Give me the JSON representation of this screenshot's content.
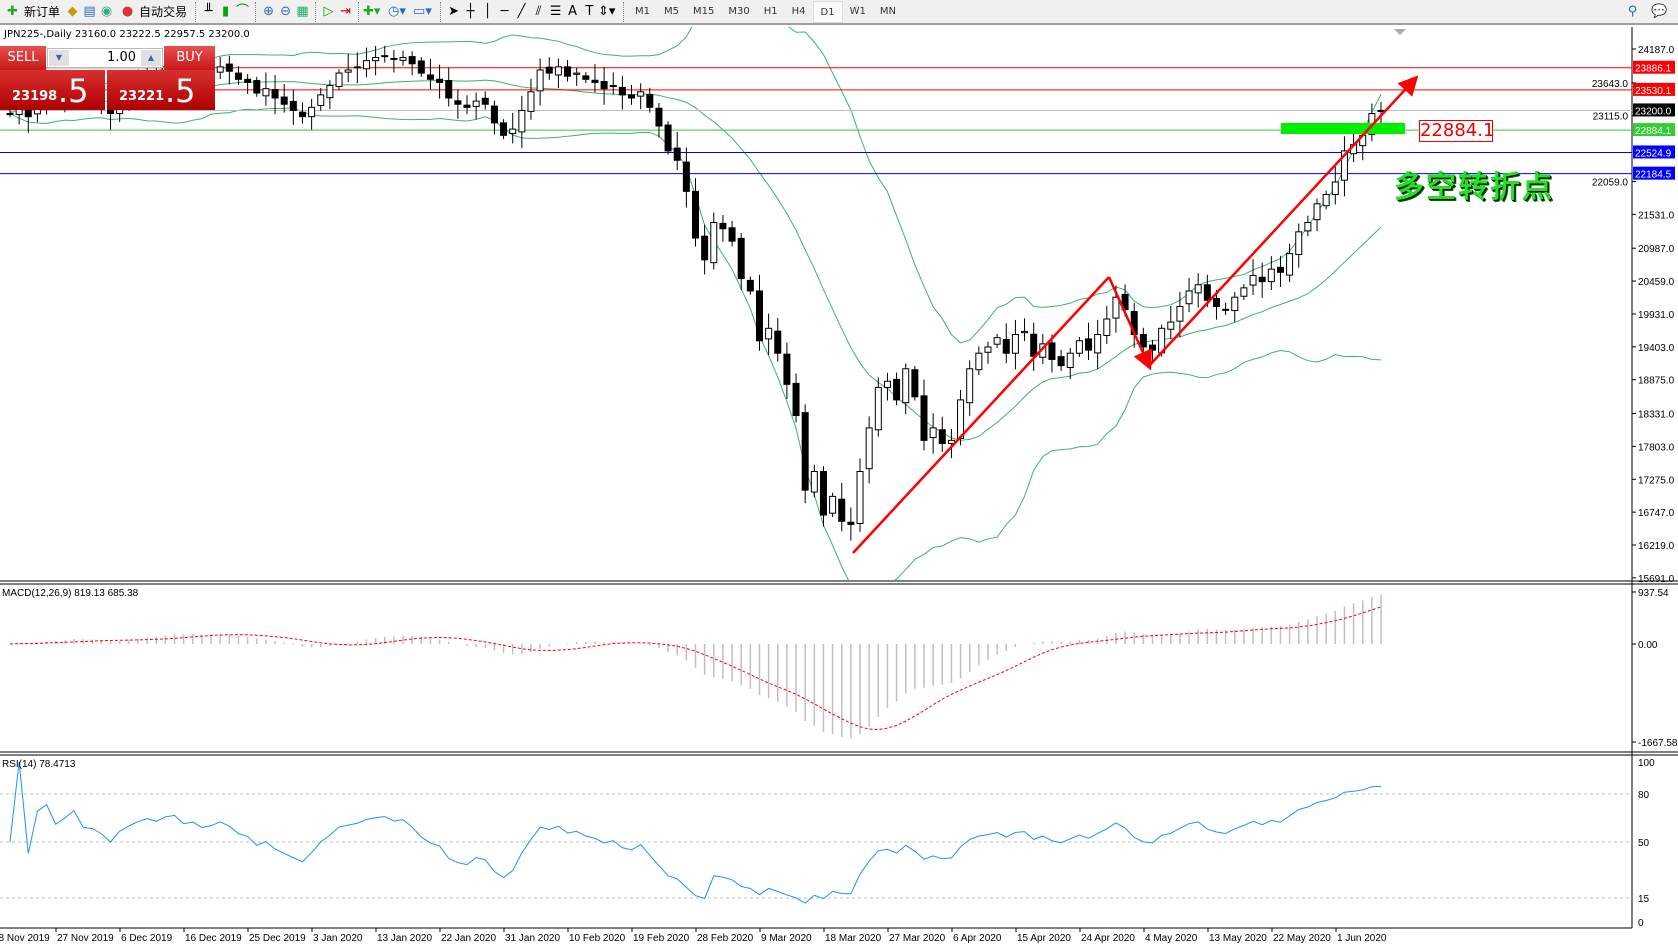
{
  "toolbar": {
    "new_order": "新订单",
    "auto_trading": "自动交易",
    "icons": [
      "new-order-icon",
      "market-watch-icon",
      "navigator-icon",
      "signal-icon",
      "auto-trading-icon",
      "bar-chart-icon",
      "candle-chart-icon",
      "line-chart-icon",
      "zoom-in-icon",
      "zoom-out-icon",
      "tile-icon",
      "autoscroll-icon",
      "chart-shift-icon",
      "indicators-icon",
      "periods-icon",
      "templates-icon",
      "cursor-icon",
      "crosshair-icon",
      "vertical-line-icon",
      "horizontal-line-icon",
      "trendline-icon",
      "equidistant-channel-icon",
      "fibonacci-icon",
      "text-icon",
      "text-label-icon",
      "arrows-icon"
    ],
    "timeframes": [
      "M1",
      "M5",
      "M15",
      "M30",
      "H1",
      "H4",
      "D1",
      "W1",
      "MN"
    ],
    "active_timeframe": "D1"
  },
  "chart": {
    "title": "JPN225-,Daily  23160.0 23222.5 22957.5 23200.0",
    "sell_label": "SELL",
    "buy_label": "BUY",
    "lot": "1.00",
    "bid_main": "23198",
    "bid_big": ".5",
    "ask_main": "23221",
    "ask_big": ".5",
    "annotation": "多空转折点",
    "box_label": "22884.1"
  },
  "macd": {
    "label": "MACD(12,26,9) 819.13 685.38",
    "axis": [
      "937.54",
      "0.00",
      "-1667.58"
    ],
    "range": [
      -1667.58,
      937.54
    ]
  },
  "rsi": {
    "label": "RSI(14) 78.4713",
    "axis": [
      "100",
      "80",
      "50",
      "15",
      "0"
    ],
    "levels": [
      80,
      50,
      15
    ]
  },
  "colors": {
    "up_line": "#000000",
    "band": "#3cb371",
    "rsi": "#1e90ff",
    "macd_signal": "#ff0000",
    "macd_hist": "#c0c0c0",
    "red_line": "#ff0000",
    "blue_line": "#0000ff",
    "green_line": "#32cd32"
  },
  "chart_data": {
    "type": "candlestick",
    "symbol": "JPN225-",
    "period": "Daily",
    "last_ohlc": [
      23160.0,
      23222.5,
      22957.5,
      23200.0
    ],
    "ylim": [
      15691.0,
      24187.0
    ],
    "price_ticks": [
      "24187.0",
      "23643.0",
      "23115.0",
      "22059.0",
      "21531.0",
      "20987.0",
      "20459.0",
      "19931.0",
      "19403.0",
      "18875.0",
      "18331.0",
      "17803.0",
      "17275.0",
      "16747.0",
      "16219.0",
      "15691.0"
    ],
    "date_labels": [
      "18 Nov 2019",
      "27 Nov 2019",
      "6 Dec 2019",
      "16 Dec 2019",
      "25 Dec 2019",
      "3 Jan 2020",
      "13 Jan 2020",
      "22 Jan 2020",
      "31 Jan 2020",
      "10 Feb 2020",
      "19 Feb 2020",
      "28 Feb 2020",
      "9 Mar 2020",
      "18 Mar 2020",
      "27 Mar 2020",
      "6 Apr 2020",
      "15 Apr 2020",
      "24 Apr 2020",
      "4 May 2020",
      "13 May 2020",
      "22 May 2020",
      "1 Jun 2020"
    ],
    "closes": [
      23150,
      23300,
      23100,
      23400,
      23500,
      23350,
      23450,
      23600,
      23400,
      23380,
      23300,
      23150,
      23400,
      23550,
      23700,
      23800,
      23750,
      23900,
      23950,
      23800,
      23850,
      23750,
      23800,
      23900,
      23830,
      23700,
      23650,
      23480,
      23550,
      23400,
      23300,
      23200,
      23100,
      23250,
      23450,
      23600,
      23800,
      23850,
      23900,
      24000,
      24050,
      24080,
      24020,
      24050,
      23950,
      23800,
      23700,
      23650,
      23400,
      23300,
      23250,
      23350,
      23300,
      23000,
      22800,
      22900,
      23200,
      23500,
      23850,
      23800,
      23900,
      23750,
      23800,
      23700,
      23650,
      23550,
      23600,
      23450,
      23400,
      23500,
      23250,
      22950,
      22550,
      22400,
      21900,
      21150,
      20800,
      21400,
      21300,
      21100,
      20500,
      20300,
      19500,
      19700,
      19300,
      18800,
      18300,
      17100,
      17400,
      16700,
      17000,
      16600,
      16550,
      17400,
      18100,
      18750,
      18850,
      18550,
      19050,
      18600,
      17900,
      18100,
      17850,
      17900,
      18550,
      19050,
      19300,
      19400,
      19550,
      19300,
      19600,
      19650,
      19250,
      19450,
      19200,
      19100,
      19300,
      19500,
      19350,
      19600,
      19850,
      20200,
      20000,
      19600,
      19400,
      19350,
      19700,
      19800,
      20050,
      20300,
      20400,
      20150,
      20050,
      20000,
      20200,
      20350,
      20550,
      20450,
      20650,
      20600,
      20900,
      21250,
      21400,
      21700,
      21850,
      22050,
      22550,
      22650,
      22800,
      23150,
      23200
    ],
    "indicators": [
      "Bollinger Bands(20,2)",
      "MACD(12,26,9)",
      "RSI(14)"
    ],
    "hlines": [
      {
        "price": 23886.1,
        "label": "23886.1",
        "color": "#ff0000"
      },
      {
        "price": 23530.1,
        "label": "23530.1",
        "color": "#ff0000"
      },
      {
        "price": 23200.0,
        "label": "23200.0",
        "color": "#000000"
      },
      {
        "price": 22884.1,
        "label": "22884.1",
        "color": "#32cd32"
      },
      {
        "price": 22524.9,
        "label": "22524.9",
        "color": "#0000ff"
      },
      {
        "price": 22184.5,
        "label": "22184.5",
        "color": "#0000ff"
      }
    ]
  }
}
